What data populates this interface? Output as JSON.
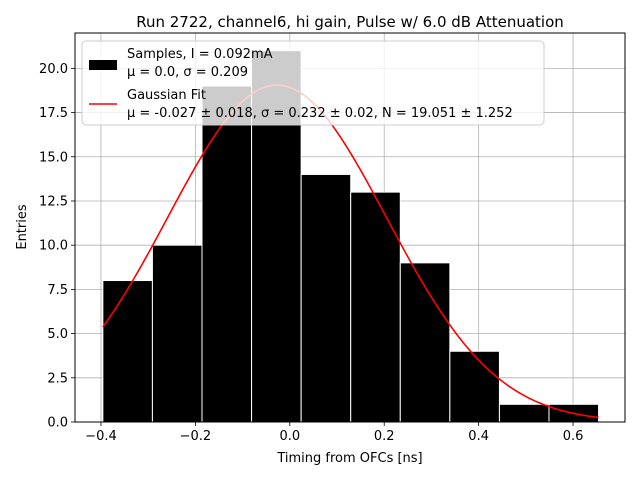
{
  "chart_data": {
    "type": "bar",
    "title": "Run 2722, channel6, hi gain, Pulse w/ 6.0 dB Attenuation",
    "xlabel": "Timing from OFCs [ns]",
    "ylabel": "Entries",
    "xlim": [
      -0.455,
      0.71
    ],
    "ylim": [
      0,
      22
    ],
    "xticks": [
      -0.4,
      -0.2,
      0.0,
      0.2,
      0.4,
      0.6
    ],
    "xtick_labels": [
      "−0.4",
      "−0.2",
      "0.0",
      "0.2",
      "0.4",
      "0.6"
    ],
    "yticks": [
      0,
      2.5,
      5,
      7.5,
      10,
      12.5,
      15,
      17.5,
      20
    ],
    "ytick_labels": [
      "0.0",
      "2.5",
      "5.0",
      "7.5",
      "10.0",
      "12.5",
      "15.0",
      "17.5",
      "20.0"
    ],
    "grid": true,
    "histogram": {
      "name": "Samples, I = 0.092mA",
      "stats": "μ = 0.0, σ = 0.209",
      "color": "#000000",
      "edgecolor": "#ffffff",
      "bin_edges": [
        -0.396,
        -0.291,
        -0.186,
        -0.081,
        0.024,
        0.129,
        0.234,
        0.339,
        0.444,
        0.549,
        0.654
      ],
      "counts": [
        8,
        10,
        19,
        21,
        14,
        13,
        9,
        4,
        1,
        1
      ]
    },
    "fit": {
      "name": "Gaussian Fit",
      "stats_mu": "μ = -0.027 ± 0.018, ",
      "stats_sigma": "σ = 0.232 ± 0.02, ",
      "stats_n": "N = 19.051 ± 1.252",
      "mu": -0.027,
      "sigma": 0.232,
      "N": 19.051,
      "x_range": [
        -0.396,
        0.654
      ],
      "color": "#ff0000"
    },
    "legend_position": "top-left"
  }
}
